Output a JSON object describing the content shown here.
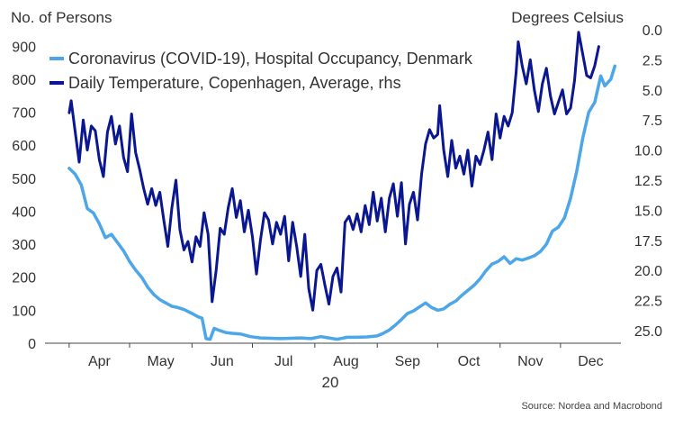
{
  "chart_data": {
    "type": "line",
    "left_axis_label": "No. of Persons",
    "right_axis_label": "Degrees Celsius",
    "left_ylim": [
      0,
      950
    ],
    "left_ticks": [
      "0",
      "100",
      "200",
      "300",
      "400",
      "500",
      "600",
      "700",
      "800",
      "900"
    ],
    "right_ylim_inverted": [
      0,
      25
    ],
    "right_ticks": [
      "0.0",
      "2.5",
      "5.0",
      "7.5",
      "10.0",
      "12.5",
      "15.0",
      "17.5",
      "20.0",
      "22.5",
      "25.0"
    ],
    "x_month_labels": [
      "Apr",
      "May",
      "Jun",
      "Jul",
      "Aug",
      "Sep",
      "Oct",
      "Nov",
      "Dec"
    ],
    "x_year_label": "20",
    "grid": false,
    "legend_placement": "top-left",
    "source": "Source: Nordea and Macrobond",
    "series": [
      {
        "name": "Coronavirus (COVID-19), Hospital Occupancy, Denmark",
        "axis": "left",
        "color": "#4da6e8",
        "points": [
          [
            "2020-04-01",
            530
          ],
          [
            "2020-04-04",
            512
          ],
          [
            "2020-04-07",
            480
          ],
          [
            "2020-04-10",
            408
          ],
          [
            "2020-04-13",
            395
          ],
          [
            "2020-04-16",
            362
          ],
          [
            "2020-04-19",
            320
          ],
          [
            "2020-04-22",
            330
          ],
          [
            "2020-04-25",
            305
          ],
          [
            "2020-04-28",
            280
          ],
          [
            "2020-05-01",
            248
          ],
          [
            "2020-05-04",
            222
          ],
          [
            "2020-05-07",
            200
          ],
          [
            "2020-05-10",
            170
          ],
          [
            "2020-05-13",
            148
          ],
          [
            "2020-05-16",
            132
          ],
          [
            "2020-05-19",
            122
          ],
          [
            "2020-05-22",
            112
          ],
          [
            "2020-05-25",
            108
          ],
          [
            "2020-05-28",
            102
          ],
          [
            "2020-06-01",
            90
          ],
          [
            "2020-06-04",
            80
          ],
          [
            "2020-06-06",
            76
          ],
          [
            "2020-06-08",
            14
          ],
          [
            "2020-06-10",
            12
          ],
          [
            "2020-06-12",
            45
          ],
          [
            "2020-06-15",
            38
          ],
          [
            "2020-06-18",
            32
          ],
          [
            "2020-06-21",
            30
          ],
          [
            "2020-06-25",
            28
          ],
          [
            "2020-06-30",
            20
          ],
          [
            "2020-07-05",
            16
          ],
          [
            "2020-07-10",
            15
          ],
          [
            "2020-07-15",
            14
          ],
          [
            "2020-07-20",
            15
          ],
          [
            "2020-07-25",
            16
          ],
          [
            "2020-07-30",
            14
          ],
          [
            "2020-08-04",
            20
          ],
          [
            "2020-08-08",
            16
          ],
          [
            "2020-08-12",
            12
          ],
          [
            "2020-08-17",
            18
          ],
          [
            "2020-08-22",
            18
          ],
          [
            "2020-08-27",
            19
          ],
          [
            "2020-09-01",
            22
          ],
          [
            "2020-09-04",
            30
          ],
          [
            "2020-09-07",
            40
          ],
          [
            "2020-09-10",
            55
          ],
          [
            "2020-09-13",
            72
          ],
          [
            "2020-09-16",
            90
          ],
          [
            "2020-09-19",
            98
          ],
          [
            "2020-09-22",
            110
          ],
          [
            "2020-09-25",
            122
          ],
          [
            "2020-09-28",
            108
          ],
          [
            "2020-10-01",
            100
          ],
          [
            "2020-10-04",
            104
          ],
          [
            "2020-10-07",
            118
          ],
          [
            "2020-10-10",
            128
          ],
          [
            "2020-10-13",
            145
          ],
          [
            "2020-10-16",
            160
          ],
          [
            "2020-10-19",
            175
          ],
          [
            "2020-10-22",
            195
          ],
          [
            "2020-10-25",
            220
          ],
          [
            "2020-10-28",
            240
          ],
          [
            "2020-10-31",
            248
          ],
          [
            "2020-11-03",
            262
          ],
          [
            "2020-11-06",
            242
          ],
          [
            "2020-11-09",
            256
          ],
          [
            "2020-11-12",
            252
          ],
          [
            "2020-11-15",
            258
          ],
          [
            "2020-11-18",
            265
          ],
          [
            "2020-11-21",
            278
          ],
          [
            "2020-11-24",
            300
          ],
          [
            "2020-11-27",
            340
          ],
          [
            "2020-11-30",
            352
          ],
          [
            "2020-12-03",
            380
          ],
          [
            "2020-12-06",
            440
          ],
          [
            "2020-12-09",
            520
          ],
          [
            "2020-12-12",
            620
          ],
          [
            "2020-12-15",
            700
          ],
          [
            "2020-12-18",
            730
          ],
          [
            "2020-12-21",
            810
          ],
          [
            "2020-12-23",
            780
          ],
          [
            "2020-12-26",
            800
          ],
          [
            "2020-12-28",
            840
          ]
        ]
      },
      {
        "name": "Daily Temperature, Copenhagen, Average, rhs",
        "axis": "right",
        "color": "#0b1791",
        "points": [
          [
            "2020-04-01",
            6.9
          ],
          [
            "2020-04-02",
            5.9
          ],
          [
            "2020-04-04",
            8.5
          ],
          [
            "2020-04-06",
            11.0
          ],
          [
            "2020-04-08",
            7.5
          ],
          [
            "2020-04-10",
            10.0
          ],
          [
            "2020-04-12",
            8.0
          ],
          [
            "2020-04-14",
            8.4
          ],
          [
            "2020-04-16",
            10.8
          ],
          [
            "2020-04-18",
            12.2
          ],
          [
            "2020-04-20",
            8.5
          ],
          [
            "2020-04-22",
            7.2
          ],
          [
            "2020-04-24",
            9.5
          ],
          [
            "2020-04-26",
            8.0
          ],
          [
            "2020-04-28",
            10.6
          ],
          [
            "2020-04-30",
            11.8
          ],
          [
            "2020-05-02",
            7.0
          ],
          [
            "2020-05-04",
            10.2
          ],
          [
            "2020-05-06",
            11.6
          ],
          [
            "2020-05-08",
            13.2
          ],
          [
            "2020-05-10",
            14.5
          ],
          [
            "2020-05-12",
            13.2
          ],
          [
            "2020-05-14",
            14.6
          ],
          [
            "2020-05-16",
            13.5
          ],
          [
            "2020-05-18",
            15.8
          ],
          [
            "2020-05-20",
            18.0
          ],
          [
            "2020-05-22",
            14.8
          ],
          [
            "2020-05-24",
            12.5
          ],
          [
            "2020-05-26",
            16.6
          ],
          [
            "2020-05-28",
            18.3
          ],
          [
            "2020-05-30",
            17.6
          ],
          [
            "2020-06-01",
            19.3
          ],
          [
            "2020-06-03",
            17.2
          ],
          [
            "2020-06-05",
            18.0
          ],
          [
            "2020-06-07",
            15.2
          ],
          [
            "2020-06-09",
            17.0
          ],
          [
            "2020-06-11",
            22.6
          ],
          [
            "2020-06-13",
            20.0
          ],
          [
            "2020-06-15",
            16.5
          ],
          [
            "2020-06-17",
            17.0
          ],
          [
            "2020-06-19",
            14.8
          ],
          [
            "2020-06-21",
            13.2
          ],
          [
            "2020-06-23",
            15.6
          ],
          [
            "2020-06-25",
            14.2
          ],
          [
            "2020-06-27",
            16.8
          ],
          [
            "2020-06-29",
            15.0
          ],
          [
            "2020-07-01",
            17.2
          ],
          [
            "2020-07-03",
            20.3
          ],
          [
            "2020-07-05",
            17.5
          ],
          [
            "2020-07-07",
            15.2
          ],
          [
            "2020-07-09",
            15.8
          ],
          [
            "2020-07-11",
            17.8
          ],
          [
            "2020-07-13",
            16.0
          ],
          [
            "2020-07-15",
            17.0
          ],
          [
            "2020-07-17",
            15.5
          ],
          [
            "2020-07-19",
            19.2
          ],
          [
            "2020-07-21",
            16.0
          ],
          [
            "2020-07-23",
            18.0
          ],
          [
            "2020-07-25",
            20.5
          ],
          [
            "2020-07-27",
            17.0
          ],
          [
            "2020-07-29",
            21.5
          ],
          [
            "2020-07-31",
            23.3
          ],
          [
            "2020-08-02",
            20.0
          ],
          [
            "2020-08-04",
            19.5
          ],
          [
            "2020-08-06",
            21.2
          ],
          [
            "2020-08-08",
            22.8
          ],
          [
            "2020-08-10",
            20.5
          ],
          [
            "2020-08-12",
            19.8
          ],
          [
            "2020-08-14",
            21.8
          ],
          [
            "2020-08-16",
            16.0
          ],
          [
            "2020-08-18",
            15.5
          ],
          [
            "2020-08-20",
            16.6
          ],
          [
            "2020-08-22",
            15.3
          ],
          [
            "2020-08-24",
            16.8
          ],
          [
            "2020-08-26",
            14.6
          ],
          [
            "2020-08-28",
            16.2
          ],
          [
            "2020-08-30",
            13.5
          ],
          [
            "2020-09-01",
            15.9
          ],
          [
            "2020-09-03",
            14.0
          ],
          [
            "2020-09-05",
            16.8
          ],
          [
            "2020-09-07",
            14.0
          ],
          [
            "2020-09-09",
            12.8
          ],
          [
            "2020-09-11",
            15.5
          ],
          [
            "2020-09-13",
            12.7
          ],
          [
            "2020-09-15",
            17.8
          ],
          [
            "2020-09-17",
            14.5
          ],
          [
            "2020-09-19",
            13.5
          ],
          [
            "2020-09-21",
            15.8
          ],
          [
            "2020-09-23",
            12.0
          ],
          [
            "2020-09-25",
            9.5
          ],
          [
            "2020-09-27",
            8.3
          ],
          [
            "2020-09-29",
            9.0
          ],
          [
            "2020-10-01",
            8.7
          ],
          [
            "2020-10-02",
            6.3
          ],
          [
            "2020-10-04",
            10.0
          ],
          [
            "2020-10-06",
            12.2
          ],
          [
            "2020-10-08",
            9.2
          ],
          [
            "2020-10-10",
            11.5
          ],
          [
            "2020-10-12",
            10.5
          ],
          [
            "2020-10-14",
            12.0
          ],
          [
            "2020-10-16",
            10.0
          ],
          [
            "2020-10-18",
            13.0
          ],
          [
            "2020-10-20",
            10.5
          ],
          [
            "2020-10-22",
            11.2
          ],
          [
            "2020-10-24",
            10.0
          ],
          [
            "2020-10-26",
            8.5
          ],
          [
            "2020-10-28",
            10.8
          ],
          [
            "2020-10-30",
            7.0
          ],
          [
            "2020-11-01",
            9.0
          ],
          [
            "2020-11-03",
            7.2
          ],
          [
            "2020-11-05",
            8.0
          ],
          [
            "2020-11-07",
            6.9
          ],
          [
            "2020-11-09",
            3.5
          ],
          [
            "2020-11-10",
            1.0
          ],
          [
            "2020-11-12",
            3.0
          ],
          [
            "2020-11-14",
            4.5
          ],
          [
            "2020-11-16",
            2.5
          ],
          [
            "2020-11-18",
            5.0
          ],
          [
            "2020-11-20",
            6.8
          ],
          [
            "2020-11-22",
            4.5
          ],
          [
            "2020-11-24",
            3.2
          ],
          [
            "2020-11-26",
            5.5
          ],
          [
            "2020-11-28",
            7.0
          ],
          [
            "2020-11-30",
            6.0
          ],
          [
            "2020-12-02",
            5.0
          ],
          [
            "2020-12-04",
            7.0
          ],
          [
            "2020-12-06",
            6.5
          ],
          [
            "2020-12-08",
            4.2
          ],
          [
            "2020-12-10",
            0.2
          ],
          [
            "2020-12-12",
            2.0
          ],
          [
            "2020-12-14",
            3.8
          ],
          [
            "2020-12-16",
            4.0
          ],
          [
            "2020-12-18",
            3.0
          ],
          [
            "2020-12-20",
            1.4
          ]
        ]
      }
    ]
  }
}
